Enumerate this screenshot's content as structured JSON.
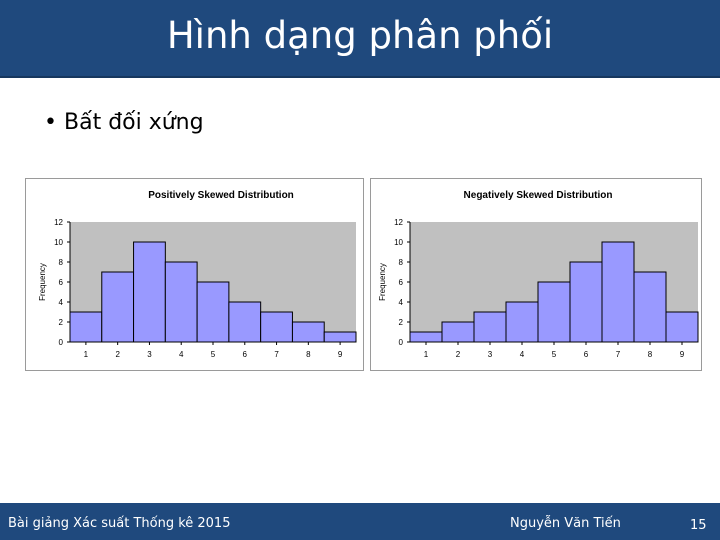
{
  "slide": {
    "title": "Hình dạng phân phối",
    "bullet": "Bất đối xứng"
  },
  "footer": {
    "course": "Bài giảng Xác suất Thống kê 2015",
    "author": "Nguyễn Văn Tiến",
    "page": "15"
  },
  "colors": {
    "header_bg": "#1f497d",
    "bar_fill": "#9999ff",
    "plot_bg": "#c0c0c0"
  },
  "chart_data": [
    {
      "type": "bar",
      "title": "Positively Skewed Distribution",
      "xlabel": "",
      "ylabel": "Frequency",
      "categories": [
        "1",
        "2",
        "3",
        "4",
        "5",
        "6",
        "7",
        "8",
        "9"
      ],
      "values": [
        3,
        7,
        10,
        8,
        6,
        4,
        3,
        2,
        1
      ],
      "yticks": [
        "0",
        "2",
        "4",
        "6",
        "8",
        "10",
        "12"
      ],
      "ylim": [
        0,
        12
      ],
      "grid": false
    },
    {
      "type": "bar",
      "title": "Negatively Skewed Distribution",
      "xlabel": "",
      "ylabel": "Frequency",
      "categories": [
        "1",
        "2",
        "3",
        "4",
        "5",
        "6",
        "7",
        "8",
        "9"
      ],
      "values": [
        1,
        2,
        3,
        4,
        6,
        8,
        10,
        7,
        3
      ],
      "yticks": [
        "0",
        "2",
        "4",
        "6",
        "8",
        "10",
        "12"
      ],
      "ylim": [
        0,
        12
      ],
      "grid": false
    }
  ]
}
